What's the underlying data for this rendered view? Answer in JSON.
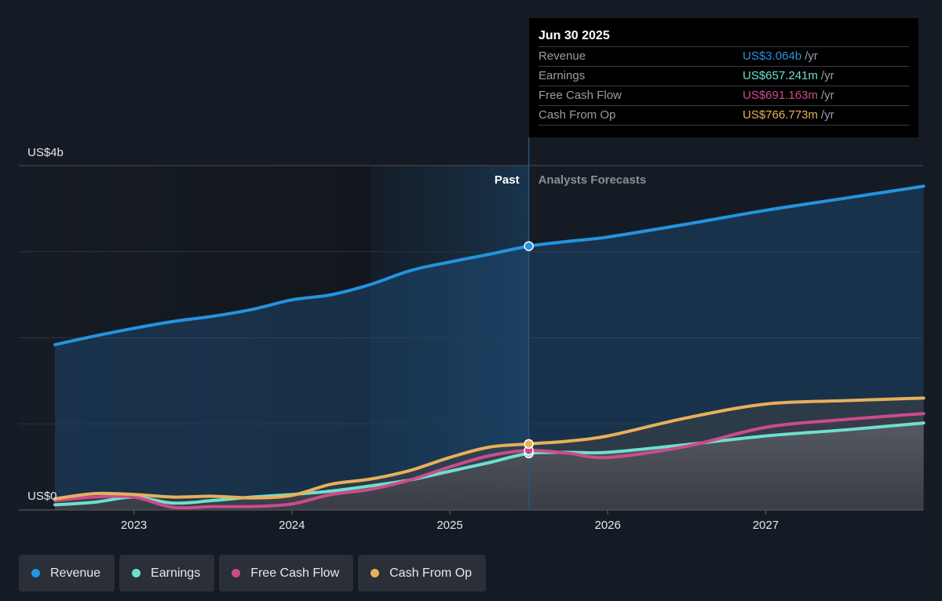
{
  "colors": {
    "revenue": "#2394df",
    "earnings": "#6ee0cb",
    "free_cash_flow": "#cc4c8a",
    "cash_from_op": "#e8b05b"
  },
  "tooltip": {
    "date": "Jun 30 2025",
    "rows": [
      {
        "label": "Revenue",
        "value": "US$3.064b",
        "unit": "/yr",
        "color": "#2394df"
      },
      {
        "label": "Earnings",
        "value": "US$657.241m",
        "unit": "/yr",
        "color": "#6ee0cb"
      },
      {
        "label": "Free Cash Flow",
        "value": "US$691.163m",
        "unit": "/yr",
        "color": "#cc4c8a"
      },
      {
        "label": "Cash From Op",
        "value": "US$766.773m",
        "unit": "/yr",
        "color": "#e8b05b"
      }
    ]
  },
  "legend": [
    {
      "label": "Revenue",
      "color": "#2394df"
    },
    {
      "label": "Earnings",
      "color": "#6ee0cb"
    },
    {
      "label": "Free Cash Flow",
      "color": "#cc4c8a"
    },
    {
      "label": "Cash From Op",
      "color": "#e8b05b"
    }
  ],
  "chart_data": {
    "type": "line",
    "title": "",
    "xlabel": "",
    "ylabel": "",
    "y_unit": "US$ billions",
    "ylim": [
      0,
      4
    ],
    "xlim": [
      2022.5,
      2028.0
    ],
    "y_tick_labels": [
      {
        "value": 4,
        "label": "US$4b"
      },
      {
        "value": 0,
        "label": "US$0"
      }
    ],
    "gridlines_y": [
      0,
      1,
      2,
      3,
      4
    ],
    "x_ticks": [
      2023,
      2024,
      2025,
      2026,
      2027
    ],
    "x_tick_labels": [
      "2023",
      "2024",
      "2025",
      "2026",
      "2027"
    ],
    "past_boundary": 2025.5,
    "highlight_start": 2024.5,
    "section_labels": {
      "past": "Past",
      "forecast": "Analysts Forecasts"
    },
    "legend_position": "bottom-left",
    "series": [
      {
        "name": "Revenue",
        "color": "#2394df",
        "x": [
          2022.5,
          2022.75,
          2023.0,
          2023.25,
          2023.5,
          2023.75,
          2024.0,
          2024.25,
          2024.5,
          2024.75,
          2025.0,
          2025.25,
          2025.5,
          2025.75,
          2026.0,
          2026.5,
          2027.0,
          2027.5,
          2028.0
        ],
        "values": [
          1.92,
          2.02,
          2.11,
          2.19,
          2.25,
          2.33,
          2.44,
          2.5,
          2.62,
          2.78,
          2.88,
          2.97,
          3.064,
          3.12,
          3.17,
          3.32,
          3.48,
          3.62,
          3.76
        ]
      },
      {
        "name": "Earnings",
        "color": "#6ee0cb",
        "x": [
          2022.5,
          2022.75,
          2023.0,
          2023.25,
          2023.5,
          2023.75,
          2024.0,
          2024.25,
          2024.5,
          2024.75,
          2025.0,
          2025.25,
          2025.5,
          2025.75,
          2026.0,
          2026.5,
          2027.0,
          2027.5,
          2028.0
        ],
        "values": [
          0.06,
          0.09,
          0.15,
          0.08,
          0.11,
          0.15,
          0.18,
          0.22,
          0.28,
          0.35,
          0.45,
          0.55,
          0.657,
          0.67,
          0.67,
          0.76,
          0.86,
          0.93,
          1.01
        ]
      },
      {
        "name": "Free Cash Flow",
        "color": "#cc4c8a",
        "x": [
          2022.5,
          2022.75,
          2023.0,
          2023.25,
          2023.5,
          2023.75,
          2024.0,
          2024.25,
          2024.5,
          2024.75,
          2025.0,
          2025.25,
          2025.5,
          2025.75,
          2026.0,
          2026.5,
          2027.0,
          2027.5,
          2028.0
        ],
        "values": [
          0.11,
          0.15,
          0.15,
          0.03,
          0.04,
          0.04,
          0.07,
          0.18,
          0.24,
          0.35,
          0.5,
          0.63,
          0.691,
          0.66,
          0.61,
          0.74,
          0.96,
          1.05,
          1.12
        ]
      },
      {
        "name": "Cash From Op",
        "color": "#e8b05b",
        "x": [
          2022.5,
          2022.75,
          2023.0,
          2023.25,
          2023.5,
          2023.75,
          2024.0,
          2024.25,
          2024.5,
          2024.75,
          2025.0,
          2025.25,
          2025.5,
          2025.75,
          2026.0,
          2026.5,
          2027.0,
          2027.5,
          2028.0
        ],
        "values": [
          0.13,
          0.19,
          0.18,
          0.15,
          0.16,
          0.14,
          0.17,
          0.3,
          0.36,
          0.46,
          0.61,
          0.73,
          0.767,
          0.8,
          0.86,
          1.07,
          1.23,
          1.27,
          1.3
        ]
      }
    ]
  }
}
